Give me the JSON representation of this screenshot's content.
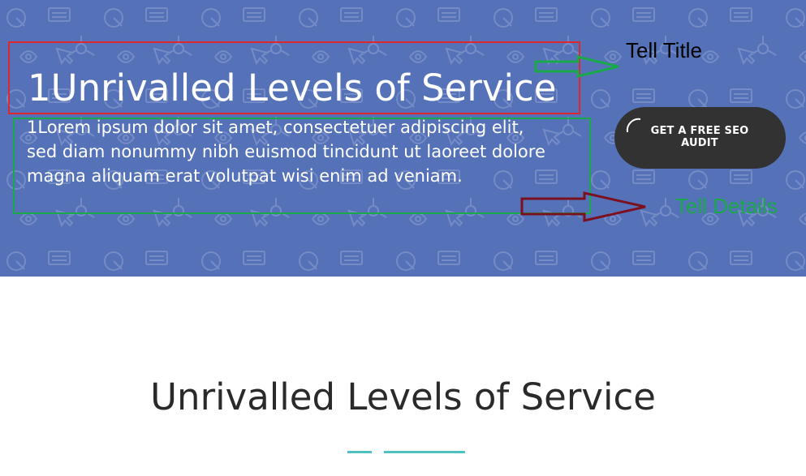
{
  "hero": {
    "title": "1Unrivalled Levels of Service",
    "text_lines": [
      "1Lorem ipsum dolor sit amet, consectetuer adipiscing elit,",
      "sed diam nonummy nibh euismod tincidunt ut laoreet dolore",
      "magna aliquam erat volutpat wisi enim ad veniam."
    ],
    "cta_label_lines": [
      "GET A FREE SEO",
      "AUDIT"
    ],
    "background_color": "#5572b9"
  },
  "annotations": {
    "title_label": "Tell Title",
    "details_label": "Tell Details",
    "title_box_color": "#e0262f",
    "details_box_color": "#1aa94a",
    "details_arrow_color": "#7a1020"
  },
  "section": {
    "heading": "Unrivalled Levels of Service",
    "divider_color": "#4fc0c4"
  }
}
